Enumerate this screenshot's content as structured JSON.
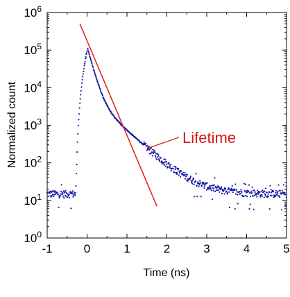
{
  "chart_data": {
    "type": "scatter",
    "xlabel": "Time (ns)",
    "ylabel": "Normalized count",
    "xlim": [
      -1,
      5
    ],
    "ylim_exponent": [
      0,
      6
    ],
    "yscale": "log",
    "xticks": [
      "-1",
      "0",
      "1",
      "2",
      "3",
      "4",
      "5"
    ],
    "yticks": [
      {
        "base": "10",
        "exp": "0"
      },
      {
        "base": "10",
        "exp": "1"
      },
      {
        "base": "10",
        "exp": "2"
      },
      {
        "base": "10",
        "exp": "3"
      },
      {
        "base": "10",
        "exp": "4"
      },
      {
        "base": "10",
        "exp": "5"
      },
      {
        "base": "10",
        "exp": "6"
      }
    ],
    "grid": false,
    "annotation": {
      "text": "Lifetime",
      "color": "#d11a1a"
    },
    "fit_line": {
      "color": "#e31a1a",
      "points": [
        {
          "x": -0.18,
          "y": 500000
        },
        {
          "x": 1.75,
          "y": 7
        }
      ]
    },
    "series": [
      {
        "color": "#1a1aa6",
        "model": {
          "background": 15,
          "baseline_rise_start": -0.3,
          "peak_x": 0.02,
          "peak_y": 120000,
          "fast_tau": 0.11,
          "fast_amp": 98000,
          "slow_tau": 0.46,
          "slow_amp": 6000,
          "x_start": -1.0,
          "x_end": 5.0,
          "step": 0.01
        }
      }
    ]
  }
}
